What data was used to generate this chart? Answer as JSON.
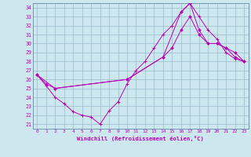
{
  "xlabel": "Windchill (Refroidissement éolien,°C)",
  "bg_color": "#cce8ee",
  "line_color": "#bb00bb",
  "grid_color": "#99bbcc",
  "spine_color": "#6688aa",
  "xlim": [
    -0.5,
    23.5
  ],
  "ylim": [
    20.5,
    34.5
  ],
  "yticks": [
    21,
    22,
    23,
    24,
    25,
    26,
    27,
    28,
    29,
    30,
    31,
    32,
    33,
    34
  ],
  "xticks": [
    0,
    1,
    2,
    3,
    4,
    5,
    6,
    7,
    8,
    9,
    10,
    11,
    12,
    13,
    14,
    15,
    16,
    17,
    18,
    19,
    20,
    21,
    22,
    23
  ],
  "line1_x": [
    0,
    1,
    2,
    3,
    4,
    5,
    6,
    7,
    8,
    9,
    10,
    11,
    12,
    13,
    14,
    15,
    16,
    17,
    18,
    19,
    20,
    21,
    22,
    23
  ],
  "line1_y": [
    26.5,
    25.3,
    24.0,
    23.3,
    22.4,
    22.0,
    21.8,
    21.0,
    22.5,
    23.5,
    25.5,
    27.0,
    28.0,
    29.5,
    31.0,
    32.0,
    33.5,
    34.5,
    33.0,
    31.5,
    30.5,
    29.0,
    28.3,
    28.0
  ],
  "line2_x": [
    0,
    1,
    2,
    10,
    14,
    15,
    16,
    17,
    18,
    19,
    20,
    21,
    22,
    23
  ],
  "line2_y": [
    26.5,
    25.5,
    25.0,
    26.0,
    28.5,
    29.5,
    31.5,
    33.0,
    31.0,
    30.0,
    30.0,
    29.5,
    28.5,
    28.0
  ],
  "line3_x": [
    0,
    2,
    10,
    14,
    16,
    17,
    18,
    19,
    20,
    21,
    22,
    23
  ],
  "line3_y": [
    26.5,
    25.0,
    26.0,
    28.5,
    33.5,
    34.5,
    31.5,
    30.0,
    30.0,
    29.5,
    29.0,
    28.0
  ]
}
